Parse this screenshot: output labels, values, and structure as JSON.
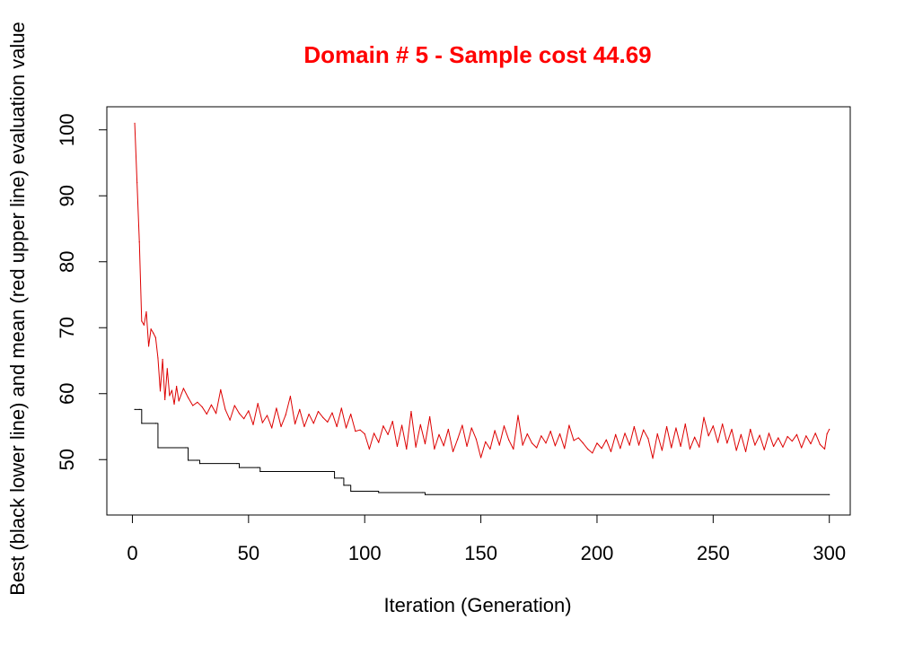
{
  "chart_data": {
    "type": "line",
    "title": "Domain # 5  - Sample cost 44.69",
    "xlabel": "Iteration (Generation)",
    "ylabel": "Best (black lower line) and mean (red upper line) evaluation value",
    "xlim": [
      -11,
      309
    ],
    "ylim": [
      41.6,
      103.5
    ],
    "x_ticks": [
      0,
      50,
      100,
      150,
      200,
      250,
      300
    ],
    "y_ticks": [
      50,
      60,
      70,
      80,
      90,
      100
    ],
    "grid": false,
    "legend": "none",
    "colors": {
      "title": "#ff0000",
      "best": "#000000",
      "mean": "#dd0000",
      "axis": "#000000"
    },
    "series": [
      {
        "key": "best",
        "color": "#000000",
        "step": true,
        "points": [
          [
            1,
            57.6
          ],
          [
            3,
            57.6
          ],
          [
            4,
            55.5
          ],
          [
            10,
            55.5
          ],
          [
            11,
            51.8
          ],
          [
            23,
            51.8
          ],
          [
            24,
            49.9
          ],
          [
            28,
            49.9
          ],
          [
            29,
            49.4
          ],
          [
            45,
            49.4
          ],
          [
            46,
            48.8
          ],
          [
            54,
            48.8
          ],
          [
            55,
            48.2
          ],
          [
            86,
            48.2
          ],
          [
            87,
            47.2
          ],
          [
            90,
            47.2
          ],
          [
            91,
            46.1
          ],
          [
            93,
            46.1
          ],
          [
            94,
            45.2
          ],
          [
            105,
            45.2
          ],
          [
            106,
            45.0
          ],
          [
            125,
            45.0
          ],
          [
            126,
            44.69
          ],
          [
            300,
            44.69
          ]
        ]
      },
      {
        "key": "mean",
        "color": "#dd0000",
        "step": false,
        "points": [
          [
            1,
            101
          ],
          [
            2,
            92
          ],
          [
            3,
            83
          ],
          [
            4,
            71
          ],
          [
            5,
            70.4
          ],
          [
            6,
            72.4
          ],
          [
            7,
            67.2
          ],
          [
            8,
            69.8
          ],
          [
            9,
            69.2
          ],
          [
            10,
            68.5
          ],
          [
            11,
            65.4
          ],
          [
            12,
            60.4
          ],
          [
            13,
            65.2
          ],
          [
            14,
            59.1
          ],
          [
            15,
            63.8
          ],
          [
            16,
            59.7
          ],
          [
            17,
            60.5
          ],
          [
            18,
            58.4
          ],
          [
            19,
            61.1
          ],
          [
            20,
            58.9
          ],
          [
            22,
            60.8
          ],
          [
            24,
            59.4
          ],
          [
            26,
            58.2
          ],
          [
            28,
            58.7
          ],
          [
            30,
            58.0
          ],
          [
            32,
            56.9
          ],
          [
            34,
            58.3
          ],
          [
            36,
            57.0
          ],
          [
            38,
            60.6
          ],
          [
            40,
            57.6
          ],
          [
            42,
            56.0
          ],
          [
            44,
            58.2
          ],
          [
            46,
            57.0
          ],
          [
            48,
            56.2
          ],
          [
            50,
            57.4
          ],
          [
            52,
            55.3
          ],
          [
            54,
            58.5
          ],
          [
            56,
            55.6
          ],
          [
            58,
            56.7
          ],
          [
            60,
            54.8
          ],
          [
            62,
            57.8
          ],
          [
            64,
            55.0
          ],
          [
            66,
            56.8
          ],
          [
            68,
            59.6
          ],
          [
            70,
            55.4
          ],
          [
            72,
            57.6
          ],
          [
            74,
            55.0
          ],
          [
            76,
            56.9
          ],
          [
            78,
            55.5
          ],
          [
            80,
            57.3
          ],
          [
            82,
            56.4
          ],
          [
            84,
            55.7
          ],
          [
            86,
            57.1
          ],
          [
            88,
            55.0
          ],
          [
            90,
            57.8
          ],
          [
            92,
            54.8
          ],
          [
            94,
            56.9
          ],
          [
            96,
            54.3
          ],
          [
            98,
            54.5
          ],
          [
            100,
            53.9
          ],
          [
            102,
            51.6
          ],
          [
            104,
            54.0
          ],
          [
            106,
            52.6
          ],
          [
            108,
            55.1
          ],
          [
            110,
            53.8
          ],
          [
            112,
            55.8
          ],
          [
            114,
            52.0
          ],
          [
            116,
            55.2
          ],
          [
            118,
            51.6
          ],
          [
            120,
            57.3
          ],
          [
            122,
            51.9
          ],
          [
            124,
            55.3
          ],
          [
            126,
            52.4
          ],
          [
            128,
            56.5
          ],
          [
            130,
            51.6
          ],
          [
            132,
            53.8
          ],
          [
            134,
            52.1
          ],
          [
            136,
            54.6
          ],
          [
            138,
            51.2
          ],
          [
            140,
            53.1
          ],
          [
            142,
            55.2
          ],
          [
            144,
            52.0
          ],
          [
            146,
            54.8
          ],
          [
            148,
            53.1
          ],
          [
            150,
            50.3
          ],
          [
            152,
            52.7
          ],
          [
            154,
            51.6
          ],
          [
            156,
            54.4
          ],
          [
            158,
            52.2
          ],
          [
            160,
            55.1
          ],
          [
            162,
            53.0
          ],
          [
            164,
            51.6
          ],
          [
            166,
            56.7
          ],
          [
            168,
            52.2
          ],
          [
            170,
            53.9
          ],
          [
            172,
            52.5
          ],
          [
            174,
            51.8
          ],
          [
            176,
            53.6
          ],
          [
            178,
            52.5
          ],
          [
            180,
            54.3
          ],
          [
            182,
            52.1
          ],
          [
            184,
            53.9
          ],
          [
            186,
            51.7
          ],
          [
            188,
            55.2
          ],
          [
            190,
            52.9
          ],
          [
            192,
            53.3
          ],
          [
            194,
            52.5
          ],
          [
            196,
            51.6
          ],
          [
            198,
            51.0
          ],
          [
            200,
            52.5
          ],
          [
            202,
            51.7
          ],
          [
            204,
            53.0
          ],
          [
            206,
            51.2
          ],
          [
            208,
            53.8
          ],
          [
            210,
            51.7
          ],
          [
            212,
            54.0
          ],
          [
            214,
            52.2
          ],
          [
            216,
            55.0
          ],
          [
            218,
            52.2
          ],
          [
            220,
            54.5
          ],
          [
            222,
            53.2
          ],
          [
            224,
            50.2
          ],
          [
            226,
            53.9
          ],
          [
            228,
            51.4
          ],
          [
            230,
            55.0
          ],
          [
            232,
            51.8
          ],
          [
            234,
            54.8
          ],
          [
            236,
            52.0
          ],
          [
            238,
            55.4
          ],
          [
            240,
            51.6
          ],
          [
            242,
            53.4
          ],
          [
            244,
            51.9
          ],
          [
            246,
            56.4
          ],
          [
            248,
            53.6
          ],
          [
            250,
            55.1
          ],
          [
            252,
            52.6
          ],
          [
            254,
            55.4
          ],
          [
            256,
            52.5
          ],
          [
            258,
            54.6
          ],
          [
            260,
            51.4
          ],
          [
            262,
            53.8
          ],
          [
            264,
            51.2
          ],
          [
            266,
            54.6
          ],
          [
            268,
            52.2
          ],
          [
            270,
            53.7
          ],
          [
            272,
            51.5
          ],
          [
            274,
            54.0
          ],
          [
            276,
            52.0
          ],
          [
            278,
            53.3
          ],
          [
            280,
            51.9
          ],
          [
            282,
            53.5
          ],
          [
            284,
            52.8
          ],
          [
            286,
            53.8
          ],
          [
            288,
            51.8
          ],
          [
            290,
            53.6
          ],
          [
            292,
            52.4
          ],
          [
            294,
            54.0
          ],
          [
            296,
            52.3
          ],
          [
            298,
            51.6
          ],
          [
            299,
            53.9
          ],
          [
            300,
            54.6
          ]
        ]
      }
    ]
  }
}
